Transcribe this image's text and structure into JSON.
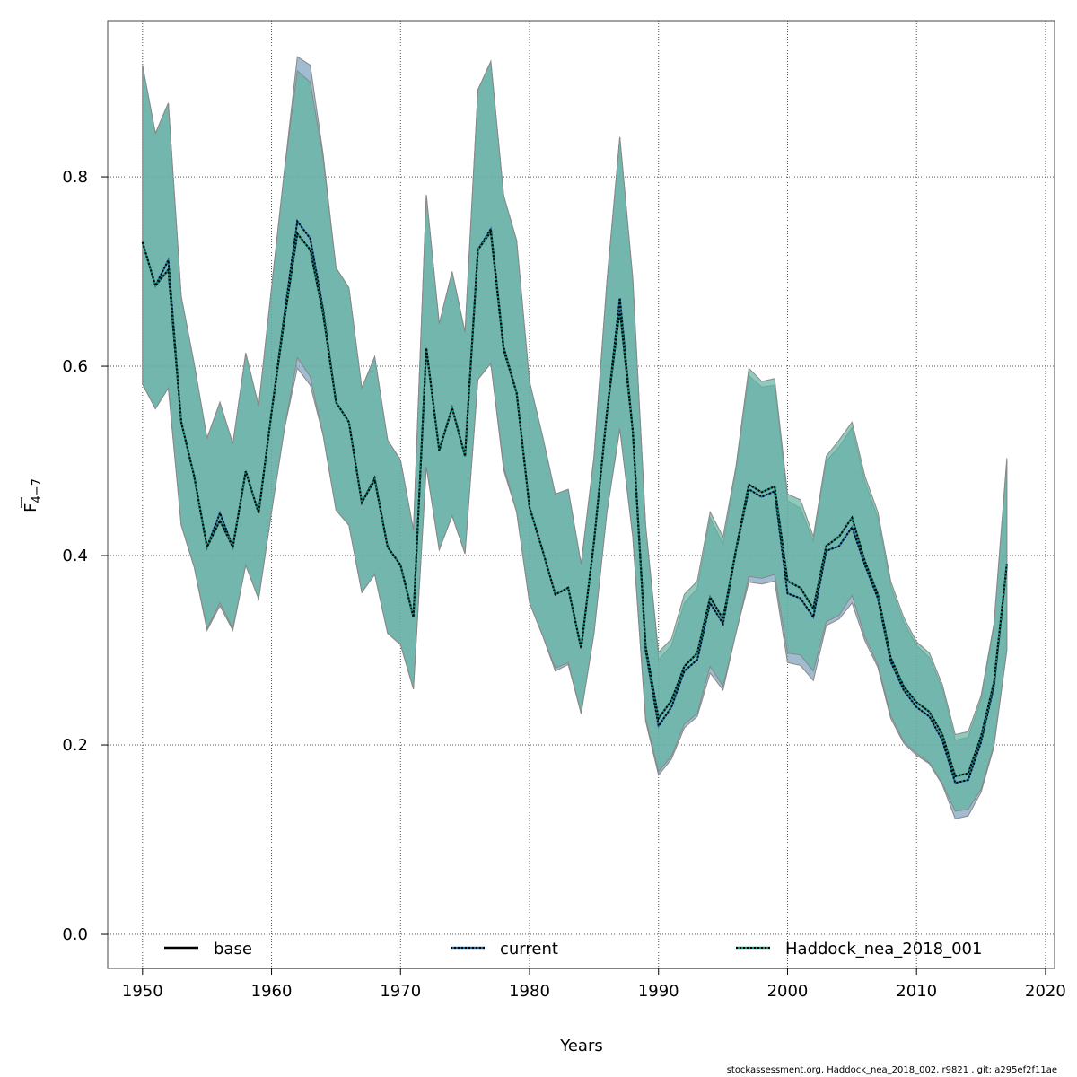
{
  "chart_data": {
    "type": "line",
    "xlabel": "Years",
    "ylabel_main": "F",
    "ylabel_sub": "4−7",
    "xlim": [
      1947.3,
      2020.7
    ],
    "ylim": [
      -0.036,
      0.965
    ],
    "xticks": [
      1950,
      1960,
      1970,
      1980,
      1990,
      2000,
      2010,
      2020
    ],
    "yticks": [
      0.0,
      0.2,
      0.4,
      0.6,
      0.8
    ],
    "ytick_labels": [
      "0.0",
      "0.2",
      "0.4",
      "0.6",
      "0.8"
    ],
    "grid": true,
    "legend_position": "bottom",
    "x": [
      1950,
      1951,
      1952,
      1953,
      1954,
      1955,
      1956,
      1957,
      1958,
      1959,
      1960,
      1961,
      1962,
      1963,
      1964,
      1965,
      1966,
      1967,
      1968,
      1969,
      1970,
      1971,
      1972,
      1973,
      1974,
      1975,
      1976,
      1977,
      1978,
      1979,
      1980,
      1981,
      1982,
      1983,
      1984,
      1985,
      1986,
      1987,
      1988,
      1989,
      1990,
      1991,
      1992,
      1993,
      1994,
      1995,
      1996,
      1997,
      1998,
      1999,
      2000,
      2001,
      2002,
      2003,
      2004,
      2005,
      2006,
      2007,
      2008,
      2009,
      2010,
      2011,
      2012,
      2013,
      2014,
      2015,
      2016,
      2017
    ],
    "series": [
      {
        "name": "base",
        "color": "#000000",
        "dash": "solid",
        "values": [
          0.731,
          0.685,
          0.702,
          0.541,
          0.484,
          0.409,
          0.437,
          0.409,
          0.489,
          0.445,
          0.551,
          0.65,
          0.74,
          0.723,
          0.655,
          0.562,
          0.541,
          0.456,
          0.48,
          0.409,
          0.39,
          0.335,
          0.619,
          0.511,
          0.556,
          0.505,
          0.723,
          0.742,
          0.617,
          0.572,
          0.451,
          0.406,
          0.359,
          0.366,
          0.302,
          0.415,
          0.551,
          0.66,
          0.532,
          0.304,
          0.228,
          0.247,
          0.283,
          0.297,
          0.356,
          0.333,
          0.406,
          0.475,
          0.467,
          0.473,
          0.373,
          0.366,
          0.344,
          0.41,
          0.42,
          0.44,
          0.394,
          0.359,
          0.292,
          0.262,
          0.245,
          0.235,
          0.211,
          0.167,
          0.17,
          0.209,
          0.266,
          0.391
        ],
        "ci_upper": [
          0.918,
          0.846,
          0.878,
          0.674,
          0.603,
          0.524,
          0.562,
          0.518,
          0.614,
          0.558,
          0.683,
          0.807,
          0.927,
          0.918,
          0.824,
          0.704,
          0.683,
          0.577,
          0.61,
          0.522,
          0.501,
          0.427,
          0.781,
          0.645,
          0.7,
          0.636,
          0.892,
          0.922,
          0.78,
          0.733,
          0.584,
          0.527,
          0.465,
          0.47,
          0.391,
          0.505,
          0.69,
          0.842,
          0.693,
          0.432,
          0.29,
          0.305,
          0.35,
          0.365,
          0.44,
          0.412,
          0.49,
          0.59,
          0.578,
          0.58,
          0.458,
          0.45,
          0.415,
          0.5,
          0.515,
          0.535,
          0.478,
          0.44,
          0.368,
          0.33,
          0.305,
          0.292,
          0.26,
          0.205,
          0.208,
          0.248,
          0.325,
          0.5
        ],
        "ci_lower": [
          0.581,
          0.555,
          0.577,
          0.432,
          0.388,
          0.321,
          0.347,
          0.321,
          0.39,
          0.354,
          0.446,
          0.534,
          0.598,
          0.58,
          0.527,
          0.448,
          0.432,
          0.361,
          0.38,
          0.318,
          0.306,
          0.259,
          0.494,
          0.406,
          0.442,
          0.402,
          0.586,
          0.603,
          0.49,
          0.446,
          0.35,
          0.316,
          0.278,
          0.285,
          0.233,
          0.318,
          0.446,
          0.534,
          0.42,
          0.225,
          0.168,
          0.185,
          0.218,
          0.23,
          0.276,
          0.258,
          0.318,
          0.372,
          0.37,
          0.373,
          0.287,
          0.284,
          0.268,
          0.326,
          0.333,
          0.35,
          0.31,
          0.282,
          0.228,
          0.202,
          0.189,
          0.18,
          0.158,
          0.122,
          0.125,
          0.15,
          0.198,
          0.3
        ]
      },
      {
        "name": "current",
        "color": "#1f6fa8",
        "dash": "dotted",
        "values": [
          0.731,
          0.685,
          0.712,
          0.541,
          0.484,
          0.409,
          0.445,
          0.409,
          0.489,
          0.445,
          0.551,
          0.655,
          0.753,
          0.735,
          0.66,
          0.562,
          0.541,
          0.456,
          0.482,
          0.409,
          0.39,
          0.335,
          0.619,
          0.511,
          0.556,
          0.505,
          0.723,
          0.745,
          0.62,
          0.572,
          0.451,
          0.406,
          0.359,
          0.366,
          0.302,
          0.415,
          0.551,
          0.672,
          0.532,
          0.3,
          0.22,
          0.24,
          0.278,
          0.29,
          0.35,
          0.328,
          0.405,
          0.47,
          0.462,
          0.468,
          0.36,
          0.355,
          0.335,
          0.405,
          0.41,
          0.43,
          0.39,
          0.355,
          0.288,
          0.258,
          0.24,
          0.23,
          0.205,
          0.16,
          0.163,
          0.203,
          0.262,
          0.391
        ],
        "ci_upper": [
          0.918,
          0.846,
          0.878,
          0.674,
          0.603,
          0.524,
          0.562,
          0.518,
          0.614,
          0.558,
          0.683,
          0.807,
          0.912,
          0.9,
          0.82,
          0.704,
          0.683,
          0.577,
          0.61,
          0.522,
          0.501,
          0.427,
          0.781,
          0.645,
          0.7,
          0.636,
          0.892,
          0.922,
          0.78,
          0.733,
          0.584,
          0.527,
          0.465,
          0.47,
          0.391,
          0.505,
          0.69,
          0.842,
          0.693,
          0.432,
          0.298,
          0.312,
          0.359,
          0.373,
          0.446,
          0.42,
          0.494,
          0.598,
          0.584,
          0.587,
          0.465,
          0.459,
          0.42,
          0.505,
          0.522,
          0.541,
          0.484,
          0.446,
          0.373,
          0.335,
          0.309,
          0.297,
          0.264,
          0.211,
          0.214,
          0.252,
          0.328,
          0.503
        ],
        "ci_lower": [
          0.581,
          0.555,
          0.577,
          0.432,
          0.388,
          0.323,
          0.35,
          0.323,
          0.39,
          0.354,
          0.446,
          0.534,
          0.609,
          0.589,
          0.527,
          0.448,
          0.432,
          0.361,
          0.38,
          0.318,
          0.306,
          0.259,
          0.494,
          0.406,
          0.442,
          0.402,
          0.586,
          0.603,
          0.494,
          0.446,
          0.35,
          0.316,
          0.281,
          0.287,
          0.233,
          0.318,
          0.446,
          0.534,
          0.42,
          0.228,
          0.172,
          0.188,
          0.222,
          0.233,
          0.283,
          0.262,
          0.318,
          0.378,
          0.376,
          0.38,
          0.297,
          0.295,
          0.278,
          0.33,
          0.337,
          0.358,
          0.314,
          0.285,
          0.231,
          0.204,
          0.191,
          0.181,
          0.159,
          0.13,
          0.132,
          0.153,
          0.2,
          0.3
        ]
      },
      {
        "name": "Haddock_nea_2018_001",
        "color": "#1a8f7a",
        "dash": "dotted",
        "values": [
          0.731,
          0.685,
          0.702,
          0.541,
          0.484,
          0.409,
          0.437,
          0.409,
          0.489,
          0.445,
          0.551,
          0.65,
          0.74,
          0.723,
          0.655,
          0.562,
          0.541,
          0.456,
          0.48,
          0.409,
          0.39,
          0.335,
          0.619,
          0.511,
          0.556,
          0.505,
          0.723,
          0.742,
          0.617,
          0.572,
          0.451,
          0.406,
          0.359,
          0.366,
          0.302,
          0.415,
          0.551,
          0.66,
          0.532,
          0.304,
          0.228,
          0.247,
          0.283,
          0.297,
          0.356,
          0.333,
          0.406,
          0.475,
          0.467,
          0.473,
          0.373,
          0.366,
          0.344,
          0.41,
          0.42,
          0.44,
          0.394,
          0.359,
          0.292,
          0.262,
          0.245,
          0.235,
          0.211,
          0.167,
          0.17,
          0.209,
          0.266,
          0.391
        ]
      }
    ]
  },
  "footer": "stockassessment.org, Haddock_nea_2018_002, r9821 , git: a295ef2f11ae"
}
